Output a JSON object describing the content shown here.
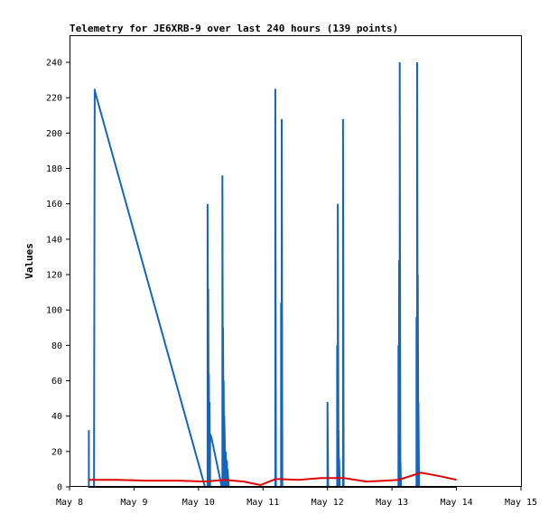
{
  "chart_data": {
    "type": "line",
    "title": "Telemetry for JE6XRB-9 over last 240 hours (139 points)",
    "ylabel": "Values",
    "xlabel": "",
    "ylim": [
      0,
      255
    ],
    "xlim": [
      "May 8",
      "May 15"
    ],
    "grid": false,
    "legend": "none",
    "x_ticks": [
      "May 8",
      "May 9",
      "May 10",
      "May 11",
      "May 12",
      "May 13",
      "May 14",
      "May 15"
    ],
    "y_ticks": [
      0,
      20,
      40,
      60,
      80,
      100,
      120,
      140,
      160,
      180,
      200,
      220,
      240
    ],
    "colors": {
      "blue": "#1565c0",
      "red": "#e00000",
      "black": "#000000"
    },
    "series": [
      {
        "color": "#1565c0",
        "x_days": [
          8.3,
          8.3,
          8.3,
          8.38,
          8.39,
          8.39,
          8.39,
          10.1,
          10.14,
          10.14,
          10.15,
          10.15,
          10.16,
          10.16,
          10.17,
          10.17,
          10.18,
          10.18,
          10.2,
          10.36,
          10.37,
          10.37,
          10.38,
          10.38,
          10.39,
          10.39,
          10.4,
          10.4,
          10.42,
          10.42,
          10.44,
          10.44,
          10.45,
          10.45,
          10.47,
          10.47,
          11.19,
          11.19,
          11.2,
          11.28,
          11.28,
          11.29,
          11.29,
          11.3,
          12.0,
          12.0,
          12.01,
          12.15,
          12.15,
          12.16,
          12.16,
          12.17,
          12.17,
          12.18,
          12.18,
          12.19,
          12.24,
          12.24,
          12.25,
          13.1,
          13.1,
          13.11,
          13.11,
          13.12,
          13.12,
          13.13,
          13.13,
          13.14,
          13.38,
          13.38,
          13.39,
          13.39,
          13.4,
          13.4,
          13.41,
          13.41,
          13.42
        ],
        "y": [
          0,
          32,
          0,
          0,
          225,
          225,
          224,
          0,
          0,
          160,
          0,
          112,
          0,
          64,
          0,
          48,
          0,
          30,
          28,
          0,
          0,
          176,
          0,
          90,
          0,
          60,
          0,
          40,
          0,
          20,
          0,
          15,
          0,
          10,
          0,
          0,
          0,
          225,
          0,
          0,
          104,
          0,
          208,
          0,
          0,
          48,
          0,
          0,
          80,
          0,
          160,
          0,
          32,
          0,
          16,
          0,
          0,
          208,
          0,
          0,
          80,
          0,
          128,
          0,
          240,
          0,
          16,
          0,
          0,
          96,
          0,
          240,
          0,
          120,
          0,
          48,
          0
        ]
      },
      {
        "color": "#e00000",
        "x_days": [
          8.3,
          8.75,
          9.2,
          9.7,
          10.1,
          10.4,
          10.7,
          10.96,
          11.2,
          11.55,
          11.9,
          12.25,
          12.6,
          12.9,
          13.1,
          13.45,
          13.75,
          14.0
        ],
        "y": [
          4,
          4,
          3.5,
          3.5,
          3,
          4,
          3,
          1,
          4.5,
          4,
          5,
          5,
          3,
          3.5,
          4,
          8,
          6,
          4
        ]
      },
      {
        "color": "#000000",
        "x_days": [
          8.3,
          14.0
        ],
        "y": [
          0,
          0
        ]
      }
    ]
  }
}
